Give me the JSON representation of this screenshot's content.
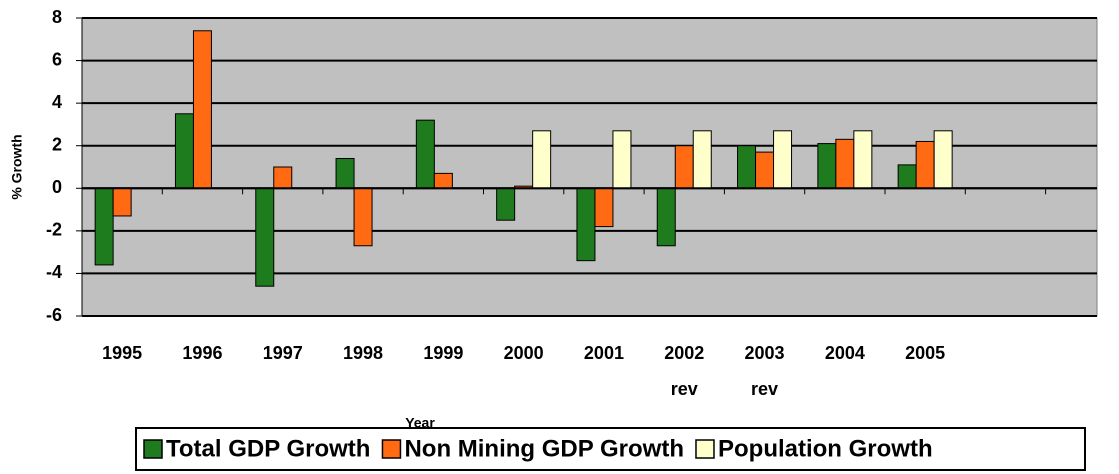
{
  "chart_data": {
    "type": "bar",
    "y_label": "% Growth",
    "x_label": "Year",
    "categories": [
      "1995",
      "1996",
      "1997",
      "1998",
      "1999",
      "2000",
      "2001",
      "2002 rev",
      "2003 rev",
      "2004",
      "2005"
    ],
    "series": [
      {
        "name": "Total GDP Growth",
        "color": "#1e7b1e",
        "values": [
          -3.6,
          3.5,
          -4.6,
          1.4,
          3.2,
          -1.5,
          -3.4,
          -2.7,
          2.0,
          2.1,
          1.1
        ]
      },
      {
        "name": "Non Mining GDP Growth",
        "color": "#ff6a13",
        "values": [
          -1.3,
          7.4,
          1.0,
          -2.7,
          0.7,
          0.1,
          -1.8,
          2.0,
          1.7,
          2.3,
          2.2
        ]
      },
      {
        "name": "Population Growth",
        "color": "#ffffcc",
        "values": [
          null,
          null,
          null,
          null,
          null,
          2.7,
          2.7,
          2.7,
          2.7,
          2.7,
          2.7
        ]
      }
    ],
    "ylim": [
      -6,
      8
    ],
    "yticks": [
      -6,
      -4,
      -2,
      0,
      2,
      4,
      6,
      8
    ],
    "grid": true,
    "legend": "bottom"
  }
}
